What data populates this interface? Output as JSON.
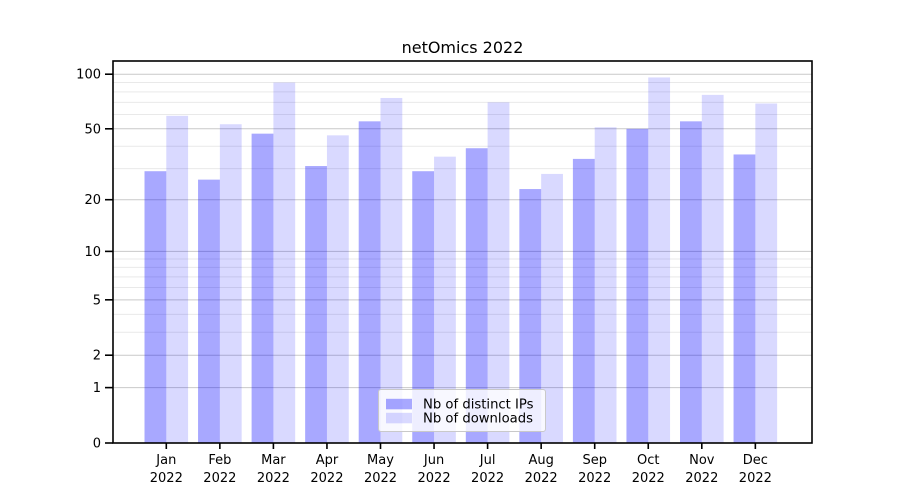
{
  "chart_data": {
    "type": "bar",
    "title": "netOmics 2022",
    "months": [
      "Jan",
      "Feb",
      "Mar",
      "Apr",
      "May",
      "Jun",
      "Jul",
      "Aug",
      "Sep",
      "Oct",
      "Nov",
      "Dec"
    ],
    "year_label": "2022",
    "categories": [
      "Jan 2022",
      "Feb 2022",
      "Mar 2022",
      "Apr 2022",
      "May 2022",
      "Jun 2022",
      "Jul 2022",
      "Aug 2022",
      "Sep 2022",
      "Oct 2022",
      "Nov 2022",
      "Dec 2022"
    ],
    "series": [
      {
        "name": "Nb of distinct IPs",
        "base_color": "#0000ff",
        "alpha": 0.34,
        "rendered_hex": "#a9a9f0",
        "values": [
          29,
          26,
          47,
          31,
          55,
          29,
          39,
          23,
          34,
          50,
          55,
          36
        ]
      },
      {
        "name": "Nb of downloads",
        "base_color": "#0000ff",
        "alpha": 0.15,
        "rendered_hex": "#dadaf8",
        "values": [
          59,
          53,
          90,
          46,
          74,
          35,
          70,
          28,
          51,
          96,
          77,
          69
        ]
      }
    ],
    "xlabel": "",
    "ylabel": "",
    "yscale": "log1p",
    "ylim": [
      0,
      117
    ],
    "yticks": [
      {
        "label": "0",
        "value": 0
      },
      {
        "label": "1",
        "value": 1
      },
      {
        "label": "2",
        "value": 2
      },
      {
        "label": "5",
        "value": 5
      },
      {
        "label": "10",
        "value": 10
      },
      {
        "label": "20",
        "value": 20
      },
      {
        "label": "50",
        "value": 50
      },
      {
        "label": "100",
        "value": 100
      }
    ],
    "minor_gridlines": [
      3,
      4,
      6,
      7,
      8,
      9,
      30,
      40,
      60,
      70,
      80,
      90
    ],
    "grid": true,
    "legend_position": "lower center",
    "axis_color": "#000000",
    "major_grid_color": "#c9c9c9",
    "minor_grid_color": "#e9e9e9",
    "legend_border_color": "#c9c9c9"
  }
}
